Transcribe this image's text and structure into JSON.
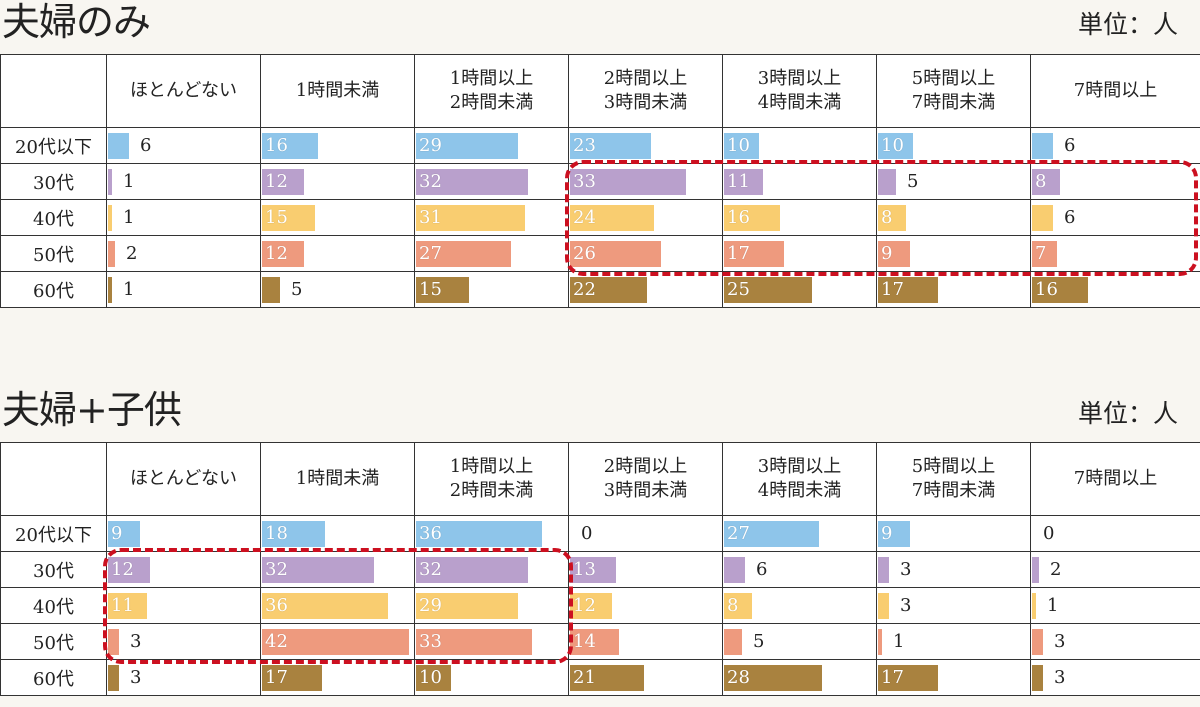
{
  "colors": {
    "20代以下": "#8ec5ea",
    "30代": "#b9a0cc",
    "40代": "#f9cd70",
    "50代": "#ee9a7e",
    "60代": "#a9823f",
    "highlight": "#cc1020"
  },
  "chart_data": [
    {
      "type": "table",
      "title": "夫婦のみ",
      "unit_label": "単位：人",
      "corner": "",
      "columns": [
        "ほとんどない",
        "1時間未満",
        "1時間以上\n2時間未満",
        "2時間以上\n3時間未満",
        "3時間以上\n4時間未満",
        "5時間以上\n7時間未満",
        "7時間以上"
      ],
      "rows": [
        {
          "label": "20代以下",
          "values": [
            6,
            16,
            29,
            23,
            10,
            10,
            6
          ]
        },
        {
          "label": "30代",
          "values": [
            1,
            12,
            32,
            33,
            11,
            5,
            8
          ]
        },
        {
          "label": "40代",
          "values": [
            1,
            15,
            31,
            24,
            16,
            8,
            6
          ]
        },
        {
          "label": "50代",
          "values": [
            2,
            12,
            27,
            26,
            17,
            9,
            7
          ]
        },
        {
          "label": "60代",
          "values": [
            1,
            5,
            15,
            22,
            25,
            17,
            16
          ]
        }
      ],
      "highlight": {
        "rows": [
          1,
          3
        ],
        "cols": [
          3,
          6
        ]
      }
    },
    {
      "type": "table",
      "title": "夫婦+子供",
      "unit_label": "単位：人",
      "corner": "",
      "columns": [
        "ほとんどない",
        "1時間未満",
        "1時間以上\n2時間未満",
        "2時間以上\n3時間未満",
        "3時間以上\n4時間未満",
        "5時間以上\n7時間未満",
        "7時間以上"
      ],
      "rows": [
        {
          "label": "20代以下",
          "values": [
            9,
            18,
            36,
            0,
            27,
            9,
            0
          ]
        },
        {
          "label": "30代",
          "values": [
            12,
            32,
            32,
            13,
            6,
            3,
            2
          ]
        },
        {
          "label": "40代",
          "values": [
            11,
            36,
            29,
            12,
            8,
            3,
            1
          ]
        },
        {
          "label": "50代",
          "values": [
            3,
            42,
            33,
            14,
            5,
            1,
            3
          ]
        },
        {
          "label": "60代",
          "values": [
            3,
            17,
            10,
            21,
            28,
            17,
            3
          ]
        }
      ],
      "highlight": {
        "rows": [
          1,
          3
        ],
        "cols": [
          0,
          2
        ]
      }
    }
  ]
}
